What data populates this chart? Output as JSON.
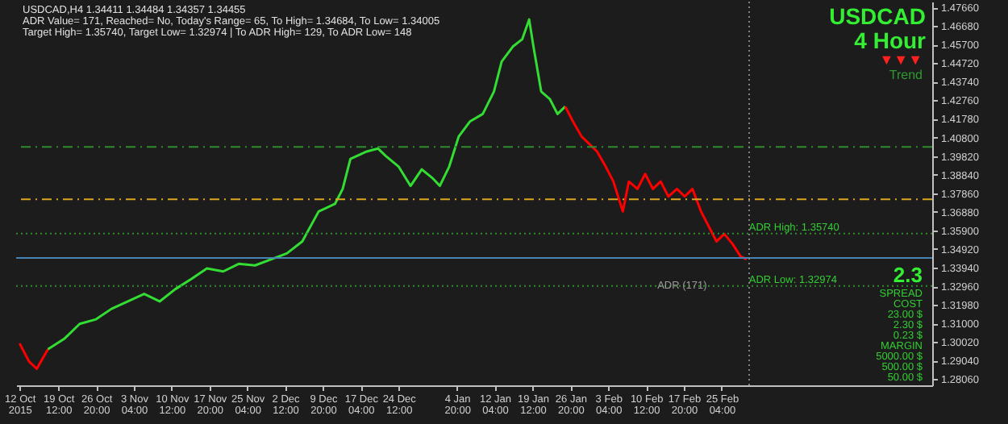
{
  "chart_data": {
    "type": "line",
    "title": "USDCAD",
    "subtitle": "4 Hour",
    "annotations": [
      "USDCAD,H4 1.34411 1.34484 1.34357 1.34455",
      "ADR Value= 171, Reached= No, Today's Range= 65, To High= 1.34684, To Low= 1.34005",
      "Target High= 1.35740, Target Low= 1.32974 | To ADR High= 129, To ADR Low= 148",
      "▼▼▼",
      "Trend",
      "2.3",
      "SPREAD",
      "COST",
      "23.00 $",
      "2.30 $",
      "0.23 $",
      "MARGIN",
      "5000.00 $",
      "500.00 $",
      "50.00 $",
      "ADR (171)"
    ],
    "xlim": [
      "2015-10-11T08:00",
      "2016-04-06T00:00"
    ],
    "xticks": [
      {
        "value": "2015-10-12T00:00",
        "label": "12 Oct 2015"
      },
      {
        "value": "2015-10-19T12:00",
        "label": "19 Oct 12:00"
      },
      {
        "value": "2015-10-26T20:00",
        "label": "26 Oct 20:00"
      },
      {
        "value": "2015-11-03T04:00",
        "label": "3 Nov 04:00"
      },
      {
        "value": "2015-11-10T12:00",
        "label": "10 Nov 12:00"
      },
      {
        "value": "2015-11-17T20:00",
        "label": "17 Nov 20:00"
      },
      {
        "value": "2015-11-25T04:00",
        "label": "25 Nov 04:00"
      },
      {
        "value": "2015-12-02T12:00",
        "label": "2 Dec 12:00"
      },
      {
        "value": "2015-12-09T20:00",
        "label": "9 Dec 20:00"
      },
      {
        "value": "2015-12-17T04:00",
        "label": "17 Dec 04:00"
      },
      {
        "value": "2015-12-24T12:00",
        "label": "24 Dec 12:00"
      },
      {
        "value": "2016-01-04T20:00",
        "label": "4 Jan 20:00"
      },
      {
        "value": "2016-01-12T04:00",
        "label": "12 Jan 04:00"
      },
      {
        "value": "2016-01-19T12:00",
        "label": "19 Jan 12:00"
      },
      {
        "value": "2016-01-26T20:00",
        "label": "26 Jan 20:00"
      },
      {
        "value": "2016-02-03T04:00",
        "label": "3 Feb 04:00"
      },
      {
        "value": "2016-02-10T12:00",
        "label": "10 Feb 12:00"
      },
      {
        "value": "2016-02-17T20:00",
        "label": "17 Feb 20:00"
      },
      {
        "value": "2016-02-25T04:00",
        "label": "25 Feb 04:00"
      }
    ],
    "ylim": [
      1.2774,
      1.4796
    ],
    "yticks": [
      {
        "value": 1.2806,
        "label": "1.28060"
      },
      {
        "value": 1.2904,
        "label": "1.29040"
      },
      {
        "value": 1.3002,
        "label": "1.30020"
      },
      {
        "value": 1.31,
        "label": "1.31000"
      },
      {
        "value": 1.3198,
        "label": "1.31980"
      },
      {
        "value": 1.3296,
        "label": "1.32960"
      },
      {
        "value": 1.3394,
        "label": "1.33940"
      },
      {
        "value": 1.3492,
        "label": "1.34920"
      },
      {
        "value": 1.359,
        "label": "1.35900"
      },
      {
        "value": 1.3688,
        "label": "1.36880"
      },
      {
        "value": 1.3786,
        "label": "1.37860"
      },
      {
        "value": 1.3884,
        "label": "1.38840"
      },
      {
        "value": 1.3982,
        "label": "1.39820"
      },
      {
        "value": 1.408,
        "label": "1.40800"
      },
      {
        "value": 1.4178,
        "label": "1.41780"
      },
      {
        "value": 1.4276,
        "label": "1.42760"
      },
      {
        "value": 1.4374,
        "label": "1.43740"
      },
      {
        "value": 1.4472,
        "label": "1.44720"
      },
      {
        "value": 1.457,
        "label": "1.45700"
      },
      {
        "value": 1.4668,
        "label": "1.46680"
      },
      {
        "value": 1.4766,
        "label": "1.47660"
      }
    ],
    "series": [
      {
        "color": "#ff0000",
        "x": [
          "2015-10-12T00:00",
          "2015-10-13T20:00",
          "2015-10-15T08:00",
          "2015-10-17T12:00"
        ],
        "values": [
          1.2995,
          1.29,
          1.2861,
          1.2964
        ]
      },
      {
        "color": "#33dd33",
        "x": [
          "2015-10-17T12:00",
          "2015-10-20T16:00",
          "2015-10-23T16:00",
          "2015-10-26T20:00",
          "2015-10-29T20:00",
          "2015-11-02T00:00",
          "2015-11-05T04:00",
          "2015-11-08T04:00",
          "2015-11-11T04:00",
          "2015-11-14T08:00",
          "2015-11-17T08:00",
          "2015-11-20T12:00",
          "2015-11-23T12:00",
          "2015-11-26T16:00",
          "2015-11-29T20:00",
          "2015-12-02T20:00",
          "2015-12-05T20:00",
          "2015-12-09T00:00",
          "2015-12-12T04:00",
          "2015-12-13T16:00",
          "2015-12-15T04:00",
          "2015-12-18T08:00",
          "2015-12-20T12:00",
          "2015-12-22T00:00",
          "2015-12-24T12:00",
          "2015-12-26T20:00",
          "2015-12-29T00:00",
          "2015-12-31T04:00",
          "2016-01-01T12:00",
          "2016-01-03T08:00",
          "2016-01-05T04:00",
          "2016-01-07T08:00",
          "2016-01-09T20:00",
          "2016-01-12T00:00",
          "2016-01-13T12:00",
          "2016-01-15T16:00",
          "2016-01-17T12:00",
          "2016-01-18T20:00",
          "2016-01-19T16:00",
          "2016-01-21T04:00",
          "2016-01-22T20:00",
          "2016-01-24T08:00",
          "2016-01-25T20:00"
        ],
        "values": [
          1.2964,
          1.3019,
          1.3098,
          1.3122,
          1.3177,
          1.3216,
          1.3256,
          1.3216,
          1.328,
          1.3335,
          1.339,
          1.3374,
          1.3414,
          1.3406,
          1.3438,
          1.3469,
          1.3532,
          1.369,
          1.373,
          1.3809,
          1.3967,
          1.4006,
          1.4022,
          1.3983,
          1.3927,
          1.3825,
          1.3912,
          1.3864,
          1.3825,
          1.3927,
          1.4085,
          1.4164,
          1.4204,
          1.4322,
          1.448,
          1.4559,
          1.4598,
          1.4702,
          1.4559,
          1.4322,
          1.4283,
          1.4204,
          1.4243
        ]
      },
      {
        "color": "#ff0000",
        "x": [
          "2016-01-25T20:00",
          "2016-01-27T08:00",
          "2016-01-29T00:00",
          "2016-01-30T12:00",
          "2016-02-01T00:00",
          "2016-02-02T16:00",
          "2016-02-04T04:00",
          "2016-02-06T00:00",
          "2016-02-07T04:00",
          "2016-02-08T20:00",
          "2016-02-10T08:00",
          "2016-02-11T20:00",
          "2016-02-13T08:00",
          "2016-02-14T20:00",
          "2016-02-16T12:00",
          "2016-02-18T00:00",
          "2016-02-19T12:00",
          "2016-02-21T04:00",
          "2016-02-24T04:00",
          "2016-02-25T16:00",
          "2016-02-27T08:00",
          "2016-02-28T20:00",
          "2016-03-01T00:00"
        ],
        "values": [
          1.4243,
          1.4164,
          1.4085,
          1.4046,
          1.4006,
          1.3927,
          1.3848,
          1.369,
          1.3848,
          1.3809,
          1.3888,
          1.3809,
          1.3848,
          1.3769,
          1.3809,
          1.3769,
          1.3809,
          1.369,
          1.3532,
          1.3572,
          1.3517,
          1.3453,
          1.3438
        ]
      }
    ],
    "ref_lines": [
      {
        "axis": "y",
        "value": 1.403,
        "color": "#2e8b2e",
        "line_style": "dashed"
      },
      {
        "axis": "y",
        "value": 1.3754,
        "color": "#daa520",
        "line_style": "dashed"
      },
      {
        "axis": "y",
        "value": 1.3574,
        "color": "#2e8b2e",
        "line_style": "dotted",
        "label": "ADR High: 1.35740"
      },
      {
        "axis": "y",
        "value": 1.34455,
        "color": "#4682b4",
        "line_style": "solid"
      },
      {
        "axis": "y",
        "value": 1.32974,
        "color": "#2e8b2e",
        "line_style": "dotted",
        "label": "ADR Low: 1.32974"
      },
      {
        "axis": "x",
        "value": "2016-03-01T12:00",
        "color": "#808080",
        "line_style": "dotted"
      }
    ]
  }
}
